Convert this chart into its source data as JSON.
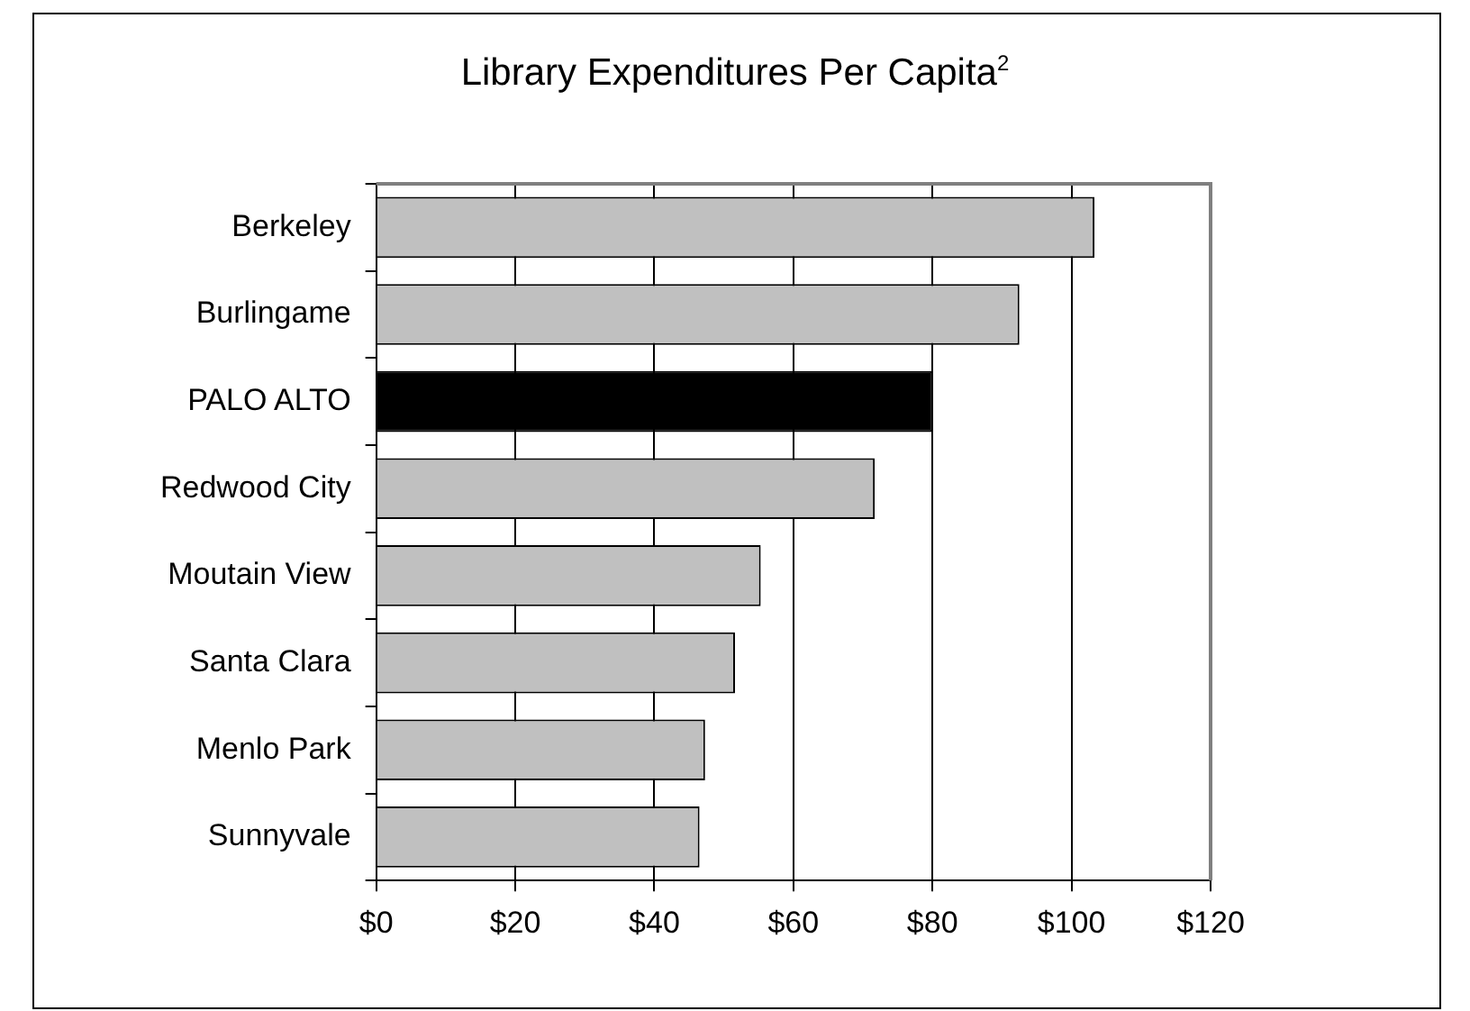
{
  "chart_data": {
    "type": "bar",
    "orientation": "horizontal",
    "title": "Library Expenditures Per Capita$^{2}$",
    "categories": [
      "Berkeley",
      "Burlingame",
      "PALO ALTO",
      "Redwood City",
      "Moutain View",
      "Santa Clara",
      "Menlo Park",
      "Sunnyvale"
    ],
    "values": [
      103.3,
      92.5,
      80,
      71.7,
      55.3,
      51.6,
      47.3,
      46.5
    ],
    "colors": [
      "#c0c0c0",
      "#c0c0c0",
      "#000000",
      "#c0c0c0",
      "#c0c0c0",
      "#c0c0c0",
      "#c0c0c0",
      "#c0c0c0"
    ],
    "xlim": [
      0,
      120
    ],
    "xticks": [
      {
        "value": 0,
        "label": "$0"
      },
      {
        "value": 20,
        "label": "$20"
      },
      {
        "value": 40,
        "label": "$40"
      },
      {
        "value": 60,
        "label": "$60"
      },
      {
        "value": 80,
        "label": "$80"
      },
      {
        "value": 100,
        "label": "$100"
      },
      {
        "value": 120,
        "label": "$120"
      }
    ],
    "grid": "x"
  }
}
